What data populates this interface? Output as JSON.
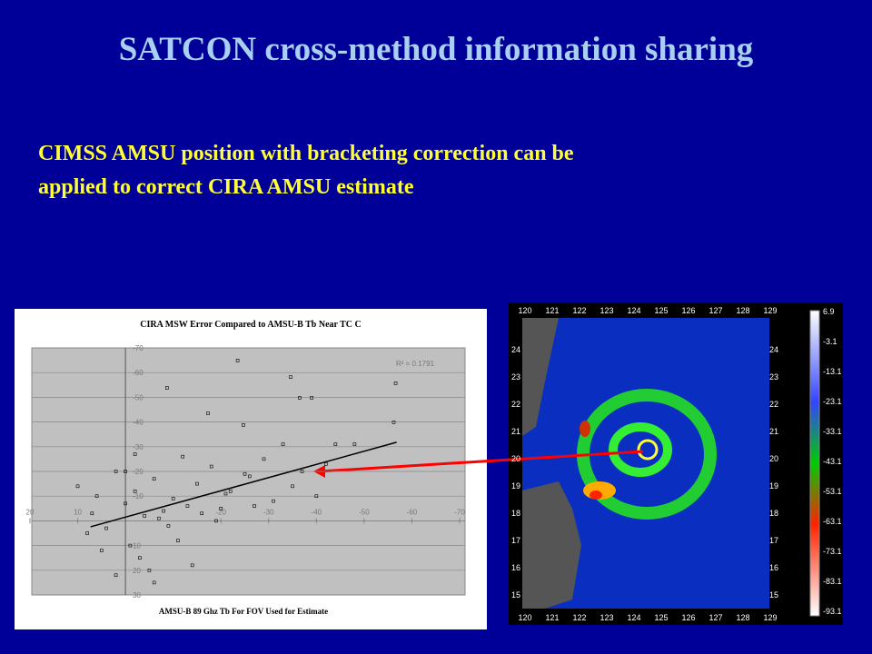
{
  "title": "SATCON cross-method information sharing",
  "body": [
    "CIMSS AMSU position with bracketing correction can be",
    "applied to correct CIRA AMSU estimate"
  ],
  "chart_data": {
    "type": "scatter",
    "title": "CIRA MSW Error Compared to AMSU-B Tb Near TC C",
    "x_label": "AMSU-B 89 Ghz Tb For FOV Used for Estimate",
    "annotation": "R² = 0.1791",
    "xlim": [
      20,
      -70
    ],
    "ylim": [
      -70,
      30
    ],
    "xticks": [
      20,
      10,
      -20,
      -30,
      -40,
      -50,
      -60,
      -70
    ],
    "yticks": [
      -70,
      -60,
      -50,
      -40,
      -30,
      -20,
      -10,
      10,
      20,
      30
    ],
    "grid": true,
    "color": "#000000",
    "x": [
      -23.5,
      -8.7,
      -34.6,
      -36.5,
      -39,
      -56.6,
      -56.2,
      -24.7,
      -17.3,
      -29,
      -33,
      -37,
      -42,
      -44,
      -48,
      -40,
      -35,
      -31,
      -26,
      -22,
      -20,
      -18,
      -15,
      -12,
      -10,
      -8,
      -6,
      -4,
      -2,
      0,
      2,
      4,
      6,
      8,
      10,
      -1,
      -3,
      -5,
      -7,
      -9,
      -11,
      -13,
      -16,
      -19,
      -21,
      -25,
      -27,
      2,
      5,
      7,
      -14,
      -6,
      0,
      -2
    ],
    "y": [
      -64.9,
      -53.8,
      -58.2,
      -49.8,
      -49.8,
      -55.7,
      -39.9,
      -38.8,
      -43.5,
      -25,
      -31,
      -20,
      -23,
      -31,
      -31,
      -10,
      -14,
      -8,
      -18,
      -12,
      -5,
      -22,
      -15,
      -26,
      -9,
      -4,
      -17,
      -2,
      -12,
      -7,
      -20,
      3,
      -10,
      5,
      -14,
      10,
      15,
      20,
      -1,
      2,
      8,
      -6,
      -3,
      0,
      -11,
      -19,
      -6,
      22,
      12,
      -3,
      18,
      25,
      -20,
      -27
    ],
    "trendline": {
      "x": [
        7.3,
        -56.8
      ],
      "y": [
        2.4,
        -31.8
      ]
    }
  },
  "satellite": {
    "top_ticks": [
      "120",
      "121",
      "122",
      "123",
      "124",
      "125",
      "126",
      "127",
      "128",
      "129"
    ],
    "side_ticks": [
      "24",
      "23",
      "22",
      "21",
      "20",
      "19",
      "18",
      "17",
      "16",
      "15"
    ],
    "colorbar": [
      "6.9",
      "-3.1",
      "-13.1",
      "-23.1",
      "-33.1",
      "-43.1",
      "-53.1",
      "-63.1",
      "-73.1",
      "-83.1",
      "-93.1"
    ]
  }
}
